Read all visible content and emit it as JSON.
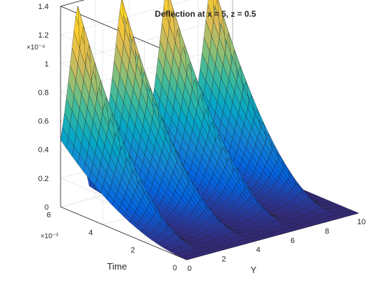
{
  "chart_data": {
    "type": "surface",
    "title": "Deflection at x = 5, z = 0.5",
    "xlabel": "Y",
    "ylabel": "Time",
    "zlabel": "",
    "x_ticks": [
      "0",
      "2",
      "4",
      "6",
      "8",
      "10"
    ],
    "y_ticks": [
      "0",
      "2",
      "4",
      "6"
    ],
    "z_ticks": [
      "0",
      "0.2",
      "0.4",
      "0.6",
      "0.8",
      "1",
      "1.2",
      "1.4"
    ],
    "y_multiplier": "×10⁻³",
    "z_multiplier": "×10⁻⁴",
    "xlim": [
      0,
      10
    ],
    "ylim": [
      0,
      0.006
    ],
    "zlim": [
      0,
      0.00014
    ],
    "grid": true,
    "colormap": "parula",
    "colormap_stops": [
      "#352a87",
      "#0363e1",
      "#1485d4",
      "#06a7c6",
      "#38b99e",
      "#92bf73",
      "#d9ba56",
      "#fcce2e",
      "#f9fb0e"
    ],
    "ridge_positions": [
      1,
      3.6,
      6.2,
      8.8
    ],
    "peak_value": 0.000137,
    "ridge_peaks": [
      0.000137,
      0.000136,
      0.000134,
      0.000132
    ],
    "time_exponent": 2
  }
}
